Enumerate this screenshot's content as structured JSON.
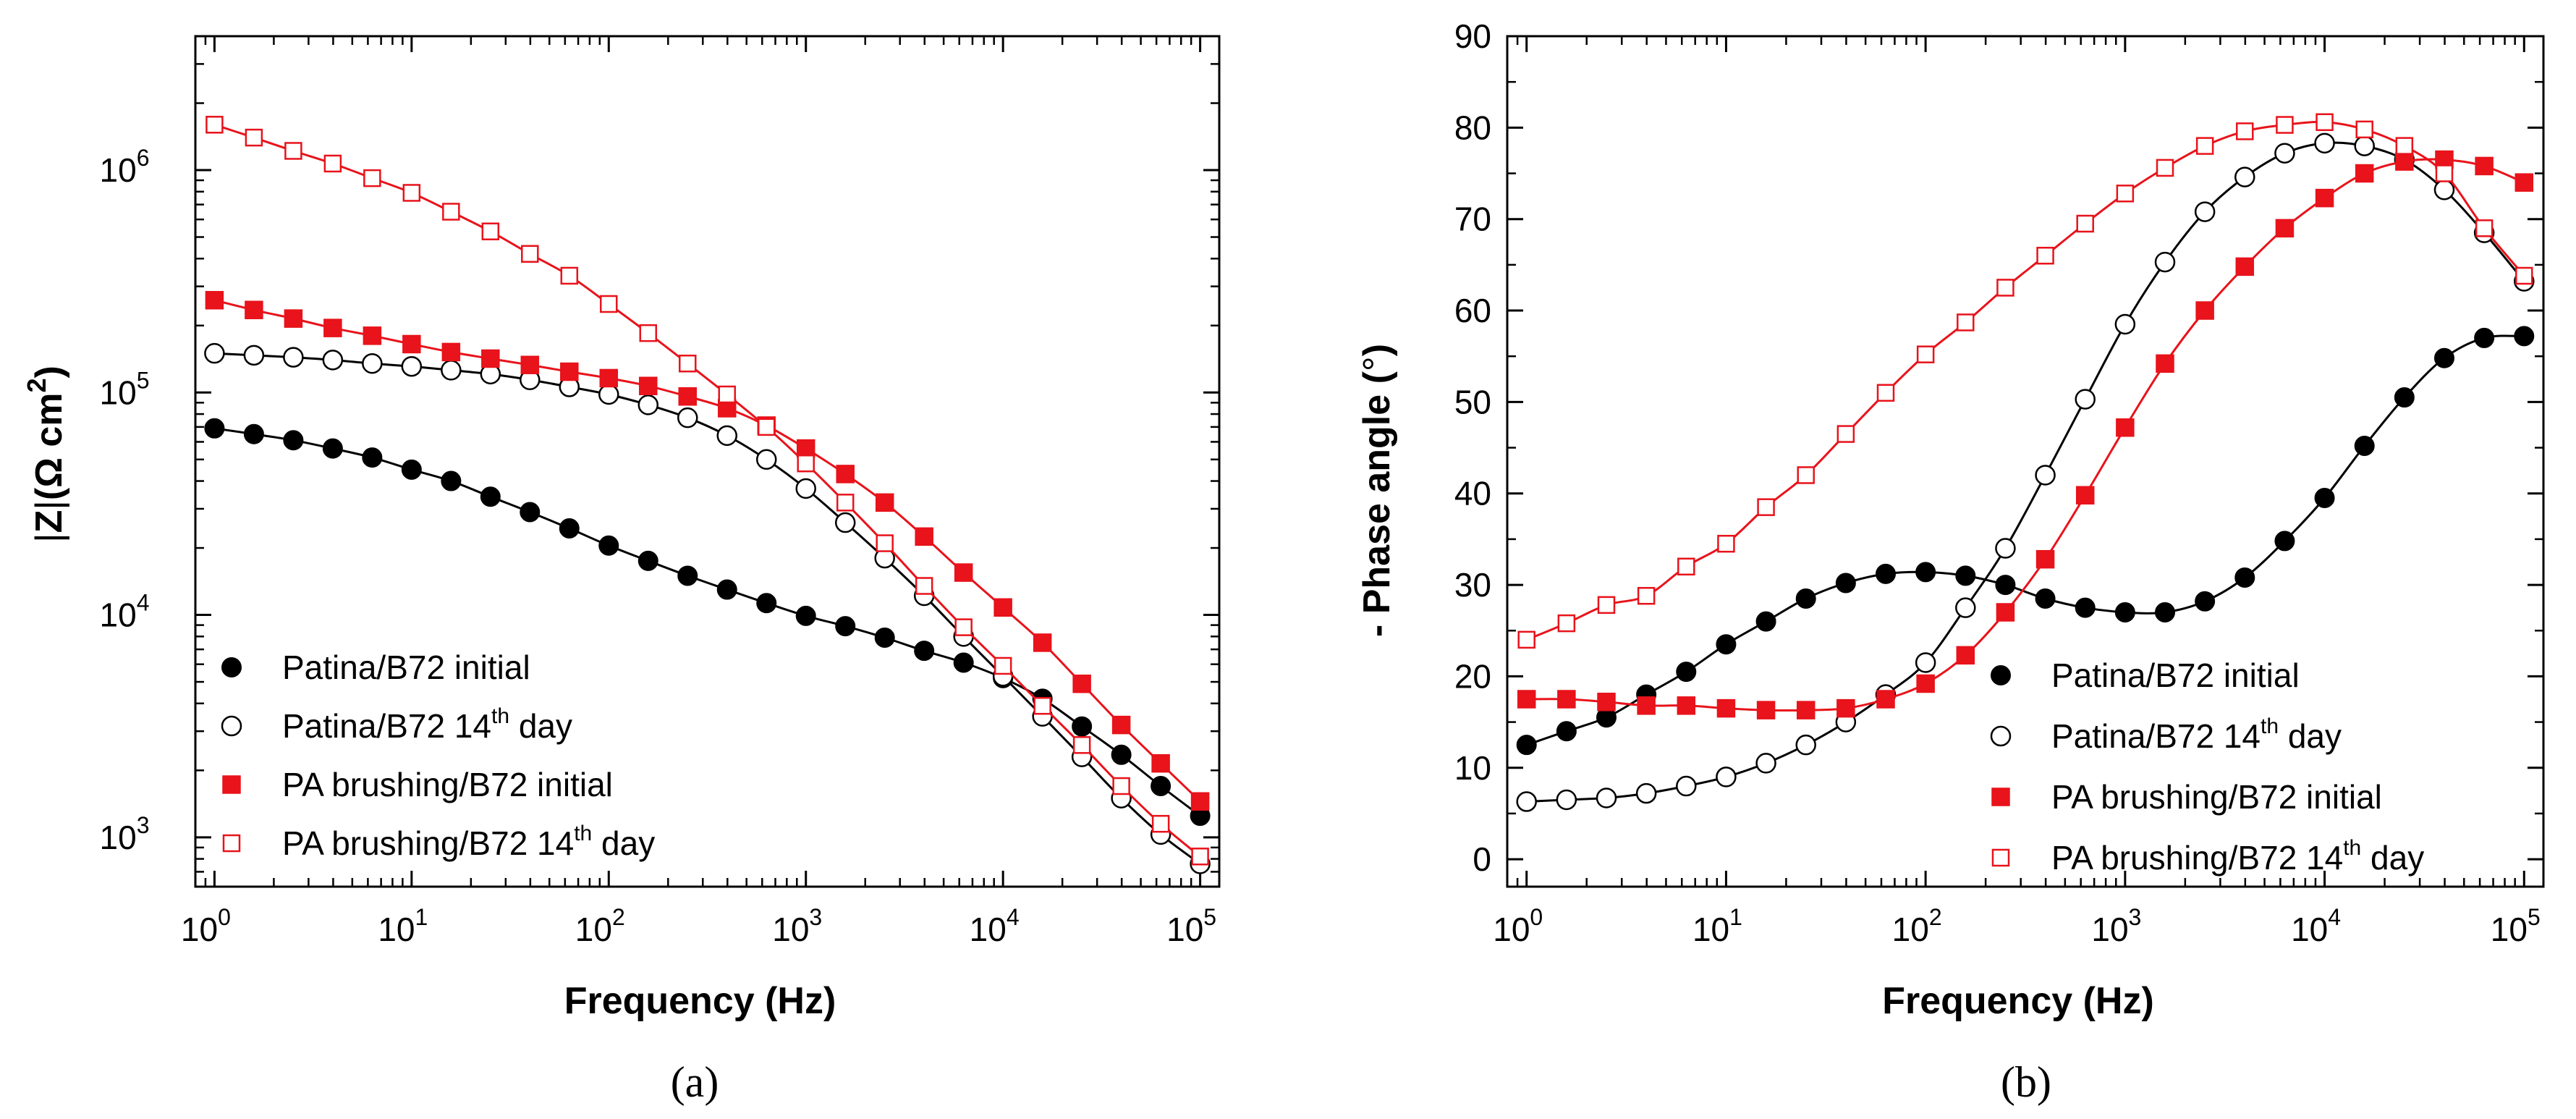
{
  "colors": {
    "black": "#000000",
    "red": "#e8131b"
  },
  "chart_data": [
    {
      "id": "a",
      "type": "scatter",
      "caption": "(a)",
      "xlabel": "Frequency (Hz)",
      "ylabel": "|Z|(Ω cm²)",
      "ylabel_parts": {
        "z": "Z",
        "bar": "|",
        "unit": "(Ω cm",
        "sup": "2",
        "close": ")"
      },
      "xscale": "log",
      "yscale": "log",
      "xlim": [
        0.8,
        125000
      ],
      "ylim": [
        600,
        4000000
      ],
      "xticks": [
        {
          "v": 1,
          "base": "10",
          "exp": "0"
        },
        {
          "v": 10,
          "base": "10",
          "exp": "1"
        },
        {
          "v": 100,
          "base": "10",
          "exp": "2"
        },
        {
          "v": 1000,
          "base": "10",
          "exp": "3"
        },
        {
          "v": 10000,
          "base": "10",
          "exp": "4"
        },
        {
          "v": 100000,
          "base": "10",
          "exp": "5"
        }
      ],
      "yticks": [
        {
          "v": 1000,
          "base": "10",
          "exp": "3"
        },
        {
          "v": 10000,
          "base": "10",
          "exp": "4"
        },
        {
          "v": 100000,
          "base": "10",
          "exp": "5"
        },
        {
          "v": 1000000,
          "base": "10",
          "exp": "6"
        }
      ],
      "legend_position": "bottom-left",
      "series": [
        {
          "name": "Patina/B72 initial",
          "label": {
            "pre": "Patina/B72 initial"
          },
          "marker": "circle-filled",
          "color": "#000000",
          "x": [
            1,
            1.585,
            2.512,
            3.981,
            6.31,
            10,
            15.85,
            25.12,
            39.81,
            63.1,
            100,
            158.5,
            251.2,
            398.1,
            631,
            1000,
            1585,
            2512,
            3981,
            6310,
            10000,
            15850,
            25120,
            39810,
            63100,
            100000
          ],
          "y": [
            69000,
            65000,
            61000,
            56000,
            51000,
            45000,
            40000,
            34000,
            29000,
            24500,
            20500,
            17500,
            15000,
            13000,
            11300,
            9900,
            8900,
            7900,
            6900,
            6100,
            5200,
            4200,
            3150,
            2350,
            1700,
            1250
          ]
        },
        {
          "name": "Patina/B72 14th day",
          "label": {
            "pre": "Patina/B72 14",
            "sup": "th",
            "post": " day"
          },
          "marker": "circle-open",
          "color": "#000000",
          "x": [
            1,
            1.585,
            2.512,
            3.981,
            6.31,
            10,
            15.85,
            25.12,
            39.81,
            63.1,
            100,
            158.5,
            251.2,
            398.1,
            631,
            1000,
            1585,
            2512,
            3981,
            6310,
            10000,
            15850,
            25120,
            39810,
            63100,
            100000
          ],
          "y": [
            150000,
            147000,
            144000,
            140000,
            135000,
            131000,
            126000,
            121000,
            114000,
            106000,
            98000,
            88000,
            77000,
            64000,
            50000,
            37000,
            26000,
            18000,
            12200,
            8000,
            5300,
            3500,
            2300,
            1500,
            1030,
            760
          ]
        },
        {
          "name": "PA brushing/B72 initial",
          "label": {
            "pre": "PA brushing/B72 initial"
          },
          "marker": "square-filled",
          "color": "#e8131b",
          "x": [
            1,
            1.585,
            2.512,
            3.981,
            6.31,
            10,
            15.85,
            25.12,
            39.81,
            63.1,
            100,
            158.5,
            251.2,
            398.1,
            631,
            1000,
            1585,
            2512,
            3981,
            6310,
            10000,
            15850,
            25120,
            39810,
            63100,
            100000
          ],
          "y": [
            260000,
            235000,
            215000,
            195000,
            180000,
            165000,
            152000,
            142000,
            133000,
            124000,
            116000,
            107000,
            96000,
            85000,
            71000,
            56000,
            43000,
            32000,
            22500,
            15500,
            10800,
            7500,
            4900,
            3200,
            2150,
            1450
          ]
        },
        {
          "name": "PA brushing/B72 14th day",
          "label": {
            "pre": "PA brushing/B72 14",
            "sup": "th",
            "post": " day"
          },
          "marker": "square-open",
          "color": "#e8131b",
          "x": [
            1,
            1.585,
            2.512,
            3.981,
            6.31,
            10,
            15.85,
            25.12,
            39.81,
            63.1,
            100,
            158.5,
            251.2,
            398.1,
            631,
            1000,
            1585,
            2512,
            3981,
            6310,
            10000,
            15850,
            25120,
            39810,
            63100,
            100000
          ],
          "y": [
            1600000,
            1400000,
            1220000,
            1070000,
            920000,
            790000,
            650000,
            530000,
            420000,
            335000,
            250000,
            185000,
            135000,
            98000,
            70000,
            48000,
            32000,
            21000,
            13500,
            8800,
            5900,
            3900,
            2600,
            1700,
            1150,
            820
          ]
        }
      ]
    },
    {
      "id": "b",
      "type": "scatter",
      "caption": "(b)",
      "xlabel": "Frequency (Hz)",
      "ylabel": "- Phase angle (°)",
      "ylabel_parts": {
        "main": "- Phase angle (",
        "deg": "°",
        "close": ")"
      },
      "xscale": "log",
      "yscale": "linear",
      "xlim": [
        0.8,
        125000
      ],
      "ylim": [
        -3,
        90
      ],
      "xticks": [
        {
          "v": 1,
          "base": "10",
          "exp": "0"
        },
        {
          "v": 10,
          "base": "10",
          "exp": "1"
        },
        {
          "v": 100,
          "base": "10",
          "exp": "2"
        },
        {
          "v": 1000,
          "base": "10",
          "exp": "3"
        },
        {
          "v": 10000,
          "base": "10",
          "exp": "4"
        },
        {
          "v": 100000,
          "base": "10",
          "exp": "5"
        }
      ],
      "yticks": [
        {
          "v": 0,
          "label": "0"
        },
        {
          "v": 10,
          "label": "10"
        },
        {
          "v": 20,
          "label": "20"
        },
        {
          "v": 30,
          "label": "30"
        },
        {
          "v": 40,
          "label": "40"
        },
        {
          "v": 50,
          "label": "50"
        },
        {
          "v": 60,
          "label": "60"
        },
        {
          "v": 70,
          "label": "70"
        },
        {
          "v": 80,
          "label": "80"
        },
        {
          "v": 90,
          "label": "90"
        }
      ],
      "legend_position": "bottom-right",
      "series": [
        {
          "name": "Patina/B72 initial",
          "label": {
            "pre": "Patina/B72 initial"
          },
          "marker": "circle-filled",
          "color": "#000000",
          "x": [
            1,
            1.585,
            2.512,
            3.981,
            6.31,
            10,
            15.85,
            25.12,
            39.81,
            63.1,
            100,
            158.5,
            251.2,
            398.1,
            631,
            1000,
            1585,
            2512,
            3981,
            6310,
            10000,
            15850,
            25120,
            39810,
            63100,
            100000
          ],
          "y": [
            12.5,
            14,
            15.5,
            18,
            20.5,
            23.5,
            26,
            28.5,
            30.2,
            31.2,
            31.4,
            31,
            30,
            28.5,
            27.5,
            27,
            27,
            28.2,
            30.8,
            34.8,
            39.5,
            45.2,
            50.5,
            54.8,
            57,
            57.2
          ]
        },
        {
          "name": "Patina/B72 14th day",
          "label": {
            "pre": "Patina/B72 14",
            "sup": "th",
            "post": " day"
          },
          "marker": "circle-open",
          "color": "#000000",
          "x": [
            1,
            1.585,
            2.512,
            3.981,
            6.31,
            10,
            15.85,
            25.12,
            39.81,
            63.1,
            100,
            158.5,
            251.2,
            398.1,
            631,
            1000,
            1585,
            2512,
            3981,
            6310,
            10000,
            15850,
            25120,
            39810,
            63100,
            100000
          ],
          "y": [
            6.3,
            6.5,
            6.7,
            7.2,
            8,
            9,
            10.5,
            12.5,
            15,
            18,
            21.5,
            27.5,
            34,
            42,
            50.3,
            58.5,
            65.3,
            70.8,
            74.6,
            77.2,
            78.3,
            78,
            76.5,
            73.2,
            68.5,
            63.2
          ]
        },
        {
          "name": "PA brushing/B72 initial",
          "label": {
            "pre": "PA brushing/B72 initial"
          },
          "marker": "square-filled",
          "color": "#e8131b",
          "x": [
            1,
            1.585,
            2.512,
            3.981,
            6.31,
            10,
            15.85,
            25.12,
            39.81,
            63.1,
            100,
            158.5,
            251.2,
            398.1,
            631,
            1000,
            1585,
            2512,
            3981,
            6310,
            10000,
            15850,
            25120,
            39810,
            63100,
            100000
          ],
          "y": [
            17.5,
            17.5,
            17.2,
            16.8,
            16.8,
            16.5,
            16.3,
            16.3,
            16.5,
            17.5,
            19.2,
            22.3,
            27,
            32.8,
            39.8,
            47.2,
            54.2,
            60,
            64.8,
            69,
            72.3,
            75,
            76.3,
            76.5,
            75.8,
            74
          ]
        },
        {
          "name": "PA brushing/B72 14th day",
          "label": {
            "pre": "PA brushing/B72 14",
            "sup": "th",
            "post": " day"
          },
          "marker": "square-open",
          "color": "#e8131b",
          "x": [
            1,
            1.585,
            2.512,
            3.981,
            6.31,
            10,
            15.85,
            25.12,
            39.81,
            63.1,
            100,
            158.5,
            251.2,
            398.1,
            631,
            1000,
            1585,
            2512,
            3981,
            6310,
            10000,
            15850,
            25120,
            39810,
            63100,
            100000
          ],
          "y": [
            24,
            25.8,
            27.8,
            28.8,
            32,
            34.5,
            38.5,
            42,
            46.5,
            51,
            55.2,
            58.7,
            62.5,
            66,
            69.5,
            72.8,
            75.6,
            78,
            79.6,
            80.3,
            80.6,
            79.8,
            78,
            75,
            69,
            63.8
          ]
        }
      ]
    }
  ]
}
